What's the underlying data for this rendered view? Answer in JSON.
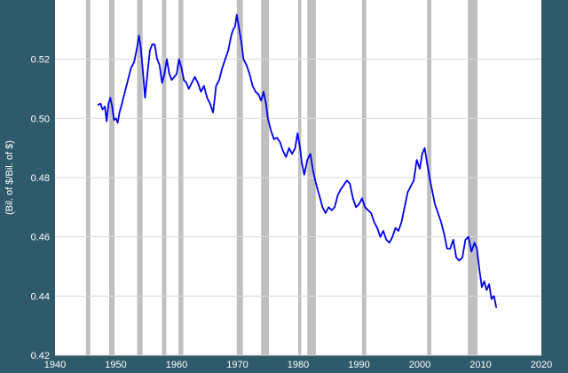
{
  "chart_data": {
    "type": "line",
    "title": "",
    "xlabel": "",
    "ylabel": "(Bil. of $/Bil. of $)",
    "xlim": [
      1940,
      2020
    ],
    "ylim": [
      0.42,
      0.54
    ],
    "x_ticks": [
      1940,
      1950,
      1960,
      1970,
      1980,
      1990,
      2000,
      2010,
      2020
    ],
    "x_tick_labels": [
      "1940",
      "1950",
      "1960",
      "1970",
      "1980",
      "1990",
      "2000",
      "2010",
      "2020"
    ],
    "y_ticks": [
      0.42,
      0.44,
      0.46,
      0.48,
      0.5,
      0.52
    ],
    "y_tick_labels": [
      "0.42",
      "0.44",
      "0.46",
      "0.48",
      "0.50",
      "0.52"
    ],
    "grid": true,
    "legend": "none",
    "colors": {
      "frame": "#2e5a6b",
      "plot_background": "#ffffff",
      "grid": "#d9d9d9",
      "recession_band": "#bfbfbf",
      "line": "#0000ee"
    },
    "recessions": [
      [
        1945.1,
        1945.8
      ],
      [
        1948.9,
        1949.8
      ],
      [
        1953.5,
        1954.4
      ],
      [
        1957.6,
        1958.3
      ],
      [
        1960.3,
        1961.1
      ],
      [
        1969.9,
        1970.9
      ],
      [
        1973.9,
        1975.2
      ],
      [
        1980.0,
        1980.5
      ],
      [
        1981.5,
        1982.9
      ],
      [
        1990.5,
        1991.2
      ],
      [
        2001.2,
        2001.9
      ],
      [
        2007.9,
        2009.5
      ]
    ],
    "series": [
      {
        "points": [
          [
            1947.0,
            0.5045
          ],
          [
            1947.5,
            0.505
          ],
          [
            1947.8,
            0.503
          ],
          [
            1948.2,
            0.504
          ],
          [
            1948.5,
            0.499
          ],
          [
            1948.8,
            0.505
          ],
          [
            1949.1,
            0.507
          ],
          [
            1949.4,
            0.504
          ],
          [
            1949.7,
            0.4995
          ],
          [
            1950.0,
            0.5
          ],
          [
            1950.3,
            0.4985
          ],
          [
            1950.6,
            0.502
          ],
          [
            1951.0,
            0.505
          ],
          [
            1951.5,
            0.509
          ],
          [
            1952.0,
            0.513
          ],
          [
            1952.5,
            0.517
          ],
          [
            1953.0,
            0.519
          ],
          [
            1953.5,
            0.524
          ],
          [
            1953.8,
            0.528
          ],
          [
            1954.1,
            0.524
          ],
          [
            1954.5,
            0.515
          ],
          [
            1954.8,
            0.507
          ],
          [
            1955.2,
            0.515
          ],
          [
            1955.6,
            0.523
          ],
          [
            1956.0,
            0.525
          ],
          [
            1956.4,
            0.525
          ],
          [
            1956.8,
            0.52
          ],
          [
            1957.2,
            0.518
          ],
          [
            1957.6,
            0.512
          ],
          [
            1958.0,
            0.515
          ],
          [
            1958.4,
            0.52
          ],
          [
            1958.8,
            0.515
          ],
          [
            1959.2,
            0.513
          ],
          [
            1959.6,
            0.514
          ],
          [
            1960.0,
            0.515
          ],
          [
            1960.4,
            0.52
          ],
          [
            1960.8,
            0.517
          ],
          [
            1961.2,
            0.513
          ],
          [
            1961.6,
            0.512
          ],
          [
            1962.0,
            0.51
          ],
          [
            1962.5,
            0.512
          ],
          [
            1963.0,
            0.514
          ],
          [
            1963.5,
            0.512
          ],
          [
            1964.0,
            0.509
          ],
          [
            1964.5,
            0.511
          ],
          [
            1965.0,
            0.507
          ],
          [
            1965.5,
            0.505
          ],
          [
            1966.0,
            0.502
          ],
          [
            1966.5,
            0.511
          ],
          [
            1967.0,
            0.513
          ],
          [
            1967.5,
            0.517
          ],
          [
            1968.0,
            0.52
          ],
          [
            1968.5,
            0.523
          ],
          [
            1969.0,
            0.528
          ],
          [
            1969.3,
            0.53
          ],
          [
            1969.6,
            0.531
          ],
          [
            1969.9,
            0.535
          ],
          [
            1970.3,
            0.53
          ],
          [
            1970.7,
            0.525
          ],
          [
            1971.0,
            0.52
          ],
          [
            1971.5,
            0.518
          ],
          [
            1972.0,
            0.515
          ],
          [
            1972.5,
            0.511
          ],
          [
            1973.0,
            0.509
          ],
          [
            1973.5,
            0.508
          ],
          [
            1973.9,
            0.506
          ],
          [
            1974.3,
            0.509
          ],
          [
            1974.7,
            0.505
          ],
          [
            1975.0,
            0.5
          ],
          [
            1975.5,
            0.496
          ],
          [
            1976.0,
            0.493
          ],
          [
            1976.5,
            0.4935
          ],
          [
            1977.0,
            0.492
          ],
          [
            1977.5,
            0.489
          ],
          [
            1978.0,
            0.487
          ],
          [
            1978.5,
            0.49
          ],
          [
            1979.0,
            0.488
          ],
          [
            1979.5,
            0.49
          ],
          [
            1979.9,
            0.495
          ],
          [
            1980.3,
            0.49
          ],
          [
            1980.6,
            0.485
          ],
          [
            1981.0,
            0.481
          ],
          [
            1981.5,
            0.486
          ],
          [
            1982.0,
            0.488
          ],
          [
            1982.4,
            0.483
          ],
          [
            1982.8,
            0.479
          ],
          [
            1983.2,
            0.476
          ],
          [
            1983.6,
            0.473
          ],
          [
            1984.0,
            0.47
          ],
          [
            1984.5,
            0.468
          ],
          [
            1985.0,
            0.47
          ],
          [
            1985.5,
            0.469
          ],
          [
            1986.0,
            0.47
          ],
          [
            1986.5,
            0.474
          ],
          [
            1987.0,
            0.476
          ],
          [
            1987.5,
            0.4775
          ],
          [
            1988.0,
            0.479
          ],
          [
            1988.5,
            0.478
          ],
          [
            1989.0,
            0.473
          ],
          [
            1989.5,
            0.47
          ],
          [
            1990.0,
            0.471
          ],
          [
            1990.5,
            0.473
          ],
          [
            1991.0,
            0.47
          ],
          [
            1991.5,
            0.469
          ],
          [
            1992.0,
            0.468
          ],
          [
            1992.5,
            0.465
          ],
          [
            1993.0,
            0.463
          ],
          [
            1993.5,
            0.46
          ],
          [
            1994.0,
            0.462
          ],
          [
            1994.5,
            0.459
          ],
          [
            1995.0,
            0.458
          ],
          [
            1995.5,
            0.46
          ],
          [
            1996.0,
            0.463
          ],
          [
            1996.5,
            0.462
          ],
          [
            1997.0,
            0.465
          ],
          [
            1997.5,
            0.47
          ],
          [
            1998.0,
            0.475
          ],
          [
            1998.5,
            0.477
          ],
          [
            1999.0,
            0.479
          ],
          [
            1999.5,
            0.486
          ],
          [
            2000.0,
            0.483
          ],
          [
            2000.4,
            0.488
          ],
          [
            2000.8,
            0.49
          ],
          [
            2001.2,
            0.485
          ],
          [
            2001.6,
            0.48
          ],
          [
            2002.0,
            0.476
          ],
          [
            2002.5,
            0.471
          ],
          [
            2003.0,
            0.468
          ],
          [
            2003.5,
            0.465
          ],
          [
            2004.0,
            0.461
          ],
          [
            2004.5,
            0.456
          ],
          [
            2005.0,
            0.456
          ],
          [
            2005.5,
            0.459
          ],
          [
            2006.0,
            0.453
          ],
          [
            2006.5,
            0.452
          ],
          [
            2007.0,
            0.453
          ],
          [
            2007.5,
            0.459
          ],
          [
            2008.0,
            0.46
          ],
          [
            2008.5,
            0.455
          ],
          [
            2009.0,
            0.458
          ],
          [
            2009.4,
            0.456
          ],
          [
            2009.8,
            0.449
          ],
          [
            2010.2,
            0.443
          ],
          [
            2010.6,
            0.445
          ],
          [
            2011.0,
            0.442
          ],
          [
            2011.4,
            0.444
          ],
          [
            2011.8,
            0.439
          ],
          [
            2012.2,
            0.44
          ],
          [
            2012.6,
            0.436
          ]
        ]
      }
    ]
  }
}
